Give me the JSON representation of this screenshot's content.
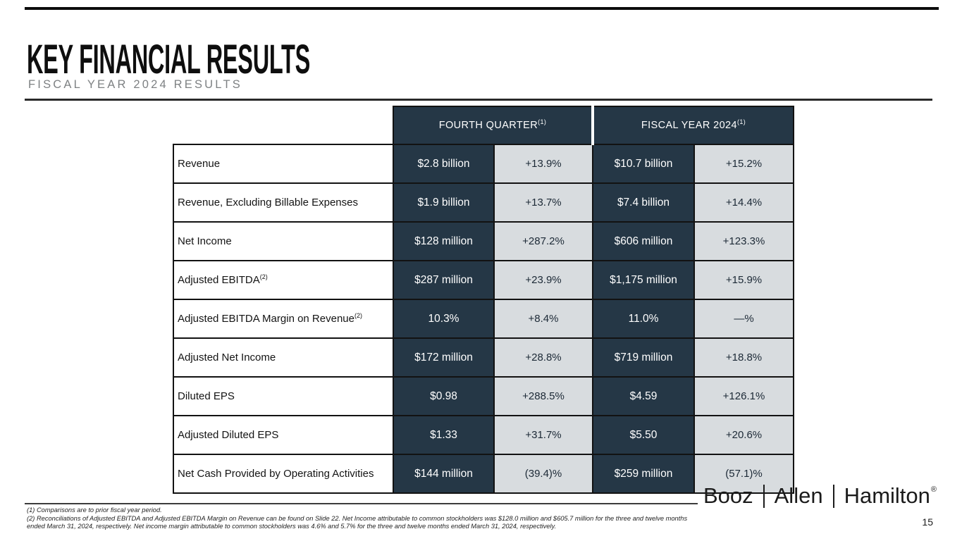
{
  "slide": {
    "title": "KEY FINANCIAL RESULTS",
    "subtitle": "FISCAL YEAR 2024 RESULTS",
    "page_number": "15"
  },
  "table": {
    "column_groups": [
      {
        "label": "FOURTH QUARTER",
        "sup": "(1)"
      },
      {
        "label": "FISCAL YEAR 2024",
        "sup": "(1)"
      }
    ],
    "rows": [
      {
        "label": "Revenue",
        "sup": "",
        "q4_value": "$2.8 billion",
        "q4_change": "+13.9%",
        "fy_value": "$10.7 billion",
        "fy_change": "+15.2%"
      },
      {
        "label": "Revenue, Excluding Billable Expenses",
        "sup": "",
        "q4_value": "$1.9 billion",
        "q4_change": "+13.7%",
        "fy_value": "$7.4 billion",
        "fy_change": "+14.4%"
      },
      {
        "label": "Net Income",
        "sup": "",
        "q4_value": "$128 million",
        "q4_change": "+287.2%",
        "fy_value": "$606 million",
        "fy_change": "+123.3%"
      },
      {
        "label": "Adjusted EBITDA",
        "sup": "(2)",
        "q4_value": "$287 million",
        "q4_change": "+23.9%",
        "fy_value": "$1,175 million",
        "fy_change": "+15.9%"
      },
      {
        "label": "Adjusted EBITDA Margin on Revenue",
        "sup": "(2)",
        "q4_value": "10.3%",
        "q4_change": "+8.4%",
        "fy_value": "11.0%",
        "fy_change": "—%"
      },
      {
        "label": "Adjusted Net Income",
        "sup": "",
        "q4_value": "$172 million",
        "q4_change": "+28.8%",
        "fy_value": "$719 million",
        "fy_change": "+18.8%"
      },
      {
        "label": "Diluted EPS",
        "sup": "",
        "q4_value": "$0.98",
        "q4_change": "+288.5%",
        "fy_value": "$4.59",
        "fy_change": "+126.1%"
      },
      {
        "label": "Adjusted Diluted EPS",
        "sup": "",
        "q4_value": "$1.33",
        "q4_change": "+31.7%",
        "fy_value": "$5.50",
        "fy_change": "+20.6%"
      },
      {
        "label": "Net Cash Provided by Operating Activities",
        "sup": "",
        "q4_value": "$144 million",
        "q4_change": "(39.4)%",
        "fy_value": "$259 million",
        "fy_change": "(57.1)%"
      }
    ]
  },
  "footnotes": [
    "(1) Comparisons are to prior fiscal year period.",
    "(2) Reconciliations of Adjusted EBITDA and Adjusted EBITDA Margin on Revenue can be found on Slide 22. Net Income attributable to common stockholders was $128.0 million and $605.7 million for the three and twelve months ended March 31, 2024, respectively.  Net income margin attributable to common stockholders was 4.6% and 5.7% for the three and twelve months ended March 31, 2024, respectively."
  ],
  "logo": {
    "words": [
      "Booz",
      "Allen",
      "Hamilton"
    ],
    "registered": "®"
  },
  "colors": {
    "navy_cell": "#253746",
    "light_gray_cell": "#d8dcdf",
    "change_text": "#1c2936",
    "subtitle_gray": "#7e8183",
    "border_black": "#121212"
  }
}
